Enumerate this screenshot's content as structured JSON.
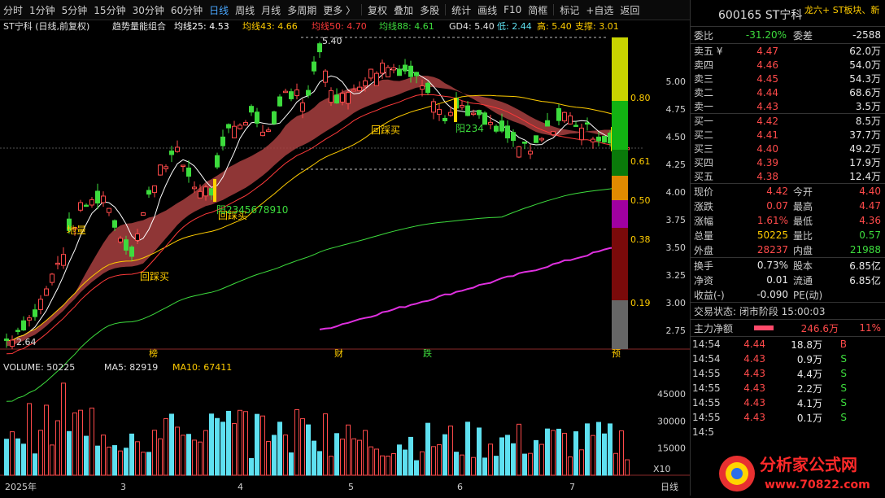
{
  "toolbar": {
    "items": [
      "分时",
      "1分钟",
      "5分钟",
      "15分钟",
      "30分钟",
      "60分钟",
      "日线",
      "周线",
      "月线",
      "多周期",
      "更多 〉",
      "复权",
      "叠加",
      "多股",
      "统计",
      "画线",
      "F10",
      "简框",
      "标记",
      "+自选",
      "返回"
    ],
    "active_index": 6
  },
  "main_legend": {
    "stock": "ST宁科 (日线,前复权)",
    "indicator": "趋势量能组合",
    "ma25": "均线25: 4.53",
    "ma43": "均线43: 4.66",
    "ma50": "均线50: 4.70",
    "ma88": "均线88: 4.61",
    "gd4": "GD4: 5.40",
    "low": "低: 2.44",
    "high": "高: 5.40",
    "support": "支撑: 3.01"
  },
  "y_axis": {
    "labels": [
      "5.00",
      "4.75",
      "4.50",
      "4.25",
      "4.00",
      "3.75",
      "3.50",
      "3.25",
      "3.00",
      "2.75"
    ],
    "values": [
      5.0,
      4.75,
      4.5,
      4.25,
      4.0,
      3.75,
      3.5,
      3.25,
      3.0,
      2.75
    ]
  },
  "bar_labels": [
    "0.80",
    "0.61",
    "0.50",
    "0.38",
    "0.19"
  ],
  "annotations": {
    "peak": "5.40",
    "low": "2.64",
    "dilian": "地量",
    "huicai1": "回踩买",
    "huicai2": "回踩买",
    "huicai3": "回踩买",
    "yang1": "阳2345678910",
    "yang2": "阳234",
    "yang3": "阳"
  },
  "events": [
    "榜",
    "财",
    "跌",
    "预"
  ],
  "volume_legend": {
    "volume": "VOLUME: 50225",
    "ma5": "MA5: 82919",
    "ma10": "MA10: 67411"
  },
  "volume_axis": {
    "labels": [
      "45000",
      "30000",
      "15000"
    ],
    "values": [
      45000,
      30000,
      15000
    ],
    "unit": "X10"
  },
  "x_axis": {
    "labels": [
      "2025年",
      "3",
      "4",
      "5",
      "6",
      "7"
    ],
    "period": "日线"
  },
  "quote": {
    "code": "600165 ST宁科",
    "note": "龙六+ ST板块、新",
    "weibi_label": "委比",
    "weibi": "-31.20%",
    "weicha_label": "委差",
    "weicha": "-2588",
    "asks": [
      {
        "label": "卖五 ¥",
        "price": "4.47",
        "vol": "62.0万"
      },
      {
        "label": "卖四",
        "price": "4.46",
        "vol": "54.0万"
      },
      {
        "label": "卖三",
        "price": "4.45",
        "vol": "54.3万"
      },
      {
        "label": "卖二",
        "price": "4.44",
        "vol": "68.6万"
      },
      {
        "label": "卖一",
        "price": "4.43",
        "vol": "3.5万"
      }
    ],
    "bids": [
      {
        "label": "买一",
        "price": "4.42",
        "vol": "8.5万"
      },
      {
        "label": "买二",
        "price": "4.41",
        "vol": "37.7万"
      },
      {
        "label": "买三",
        "price": "4.40",
        "vol": "49.2万"
      },
      {
        "label": "买四",
        "price": "4.39",
        "vol": "17.9万"
      },
      {
        "label": "买五",
        "price": "4.38",
        "vol": "12.4万"
      }
    ],
    "stats": [
      {
        "k": "现价",
        "v": "4.42",
        "c": "red",
        "k2": "今开",
        "v2": "4.40",
        "c2": "red"
      },
      {
        "k": "涨跌",
        "v": "0.07",
        "c": "red",
        "k2": "最高",
        "v2": "4.47",
        "c2": "red"
      },
      {
        "k": "涨幅",
        "v": "1.61%",
        "c": "red",
        "k2": "最低",
        "v2": "4.36",
        "c2": "red"
      },
      {
        "k": "总量",
        "v": "50225",
        "c": "yellow",
        "k2": "量比",
        "v2": "0.57",
        "c2": "green"
      },
      {
        "k": "外盘",
        "v": "28237",
        "c": "red",
        "k2": "内盘",
        "v2": "21988",
        "c2": "green"
      }
    ],
    "stats2": [
      {
        "k": "换手",
        "v": "0.73%",
        "c": "white",
        "k2": "股本",
        "v2": "6.85亿",
        "c2": "white"
      },
      {
        "k": "净资",
        "v": "0.01",
        "c": "white",
        "k2": "流通",
        "v2": "6.85亿",
        "c2": "white"
      },
      {
        "k": "收益(-)",
        "v": "-0.090",
        "c": "white",
        "k2": "PE(动)",
        "v2": "",
        "c2": "white"
      }
    ],
    "status": "交易状态: 闭市阶段 15:00:03",
    "main_flow_label": "主力净额",
    "main_flow": "246.6万",
    "main_flow_pct": "11%",
    "ticks": [
      {
        "t": "14:54",
        "p": "4.44",
        "n": "18.8万",
        "bs": "B"
      },
      {
        "t": "14:54",
        "p": "4.43",
        "n": "0.9万",
        "bs": "S"
      },
      {
        "t": "14:55",
        "p": "4.43",
        "n": "4.4万",
        "bs": "S"
      },
      {
        "t": "14:55",
        "p": "4.43",
        "n": "2.2万",
        "bs": "S"
      },
      {
        "t": "14:55",
        "p": "4.43",
        "n": "4.1万",
        "bs": "S"
      },
      {
        "t": "14:55",
        "p": "4.43",
        "n": "0.1万",
        "bs": "S"
      },
      {
        "t": "14:5",
        "p": "",
        "n": "",
        "bs": ""
      }
    ]
  },
  "watermark": {
    "text": "分析家公式网",
    "url": "www.70822.com"
  },
  "colors": {
    "up": "#ff4a4a",
    "down": "#3ddc3d",
    "volume_up": "#ff4a4a",
    "volume_down": "#5ee0f0",
    "ribbon": "#c04848",
    "ma_magenta": "#e030e0"
  }
}
